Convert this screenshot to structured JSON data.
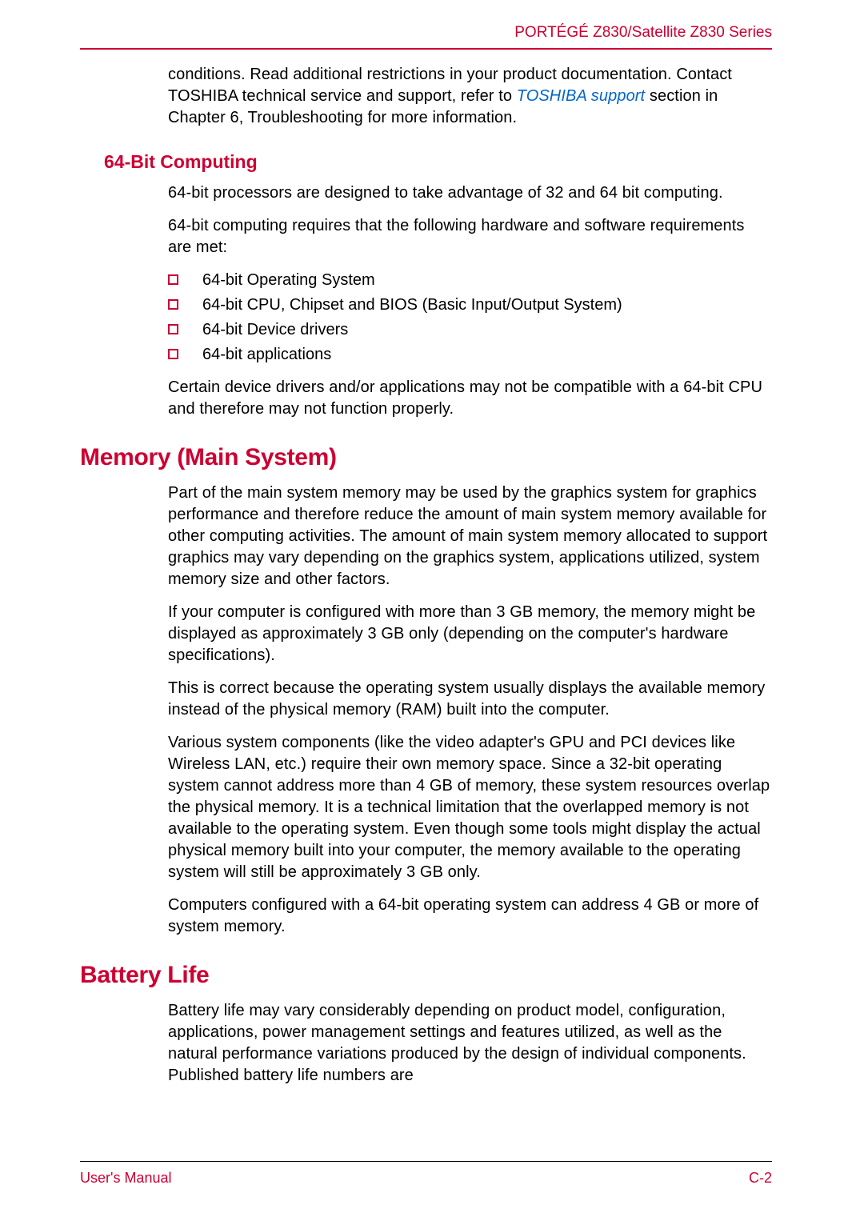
{
  "colors": {
    "accent": "#cc0033",
    "link": "#0066cc",
    "text": "#000000",
    "background": "#ffffff"
  },
  "header": {
    "series": "PORTÉGÉ Z830/Satellite Z830 Series"
  },
  "intro": {
    "text_before_link": "conditions. Read additional restrictions in your product documentation. Contact TOSHIBA technical service and support, refer to ",
    "link_text": "TOSHIBA support",
    "text_after_link": " section in Chapter 6, Troubleshooting for more information."
  },
  "section_64bit": {
    "heading": "64-Bit Computing",
    "para1": "64-bit processors are designed to take advantage of 32 and 64 bit computing.",
    "para2": "64-bit computing requires that the following hardware and software requirements are met:",
    "bullets": [
      "64-bit Operating System",
      "64-bit CPU, Chipset and BIOS (Basic Input/Output System)",
      "64-bit Device drivers",
      "64-bit applications"
    ],
    "para3": "Certain device drivers and/or applications may not be compatible with a 64-bit CPU and therefore may not function properly."
  },
  "section_memory": {
    "heading": "Memory (Main System)",
    "para1": "Part of the main system memory may be used by the graphics system for graphics performance and therefore reduce the amount of main system memory available for other computing activities. The amount of main system memory allocated to support graphics may vary depending on the graphics system, applications utilized, system memory size and other factors.",
    "para2": "If your computer is configured with more than 3 GB memory, the memory might be displayed as approximately 3 GB only (depending on the computer's hardware specifications).",
    "para3": "This is correct because the operating system usually displays the available memory instead of the physical memory (RAM) built into the computer.",
    "para4": "Various system components (like the video adapter's GPU and PCI devices like Wireless LAN, etc.) require their own memory space. Since a 32-bit operating system cannot address more than 4 GB of memory, these system resources overlap the physical memory. It is a technical limitation that the overlapped memory is not available to the operating system. Even though some tools might display the actual physical memory built into your computer, the memory available to the operating system will still be approximately 3 GB only.",
    "para5": "Computers configured with a 64-bit operating system can address 4 GB or more of system memory."
  },
  "section_battery": {
    "heading": "Battery Life",
    "para1": "Battery life may vary considerably depending on product model, configuration, applications, power management settings and features utilized, as well as the natural performance variations produced by the design of individual components. Published battery life numbers are"
  },
  "footer": {
    "left": "User's Manual",
    "right": "C-2"
  }
}
